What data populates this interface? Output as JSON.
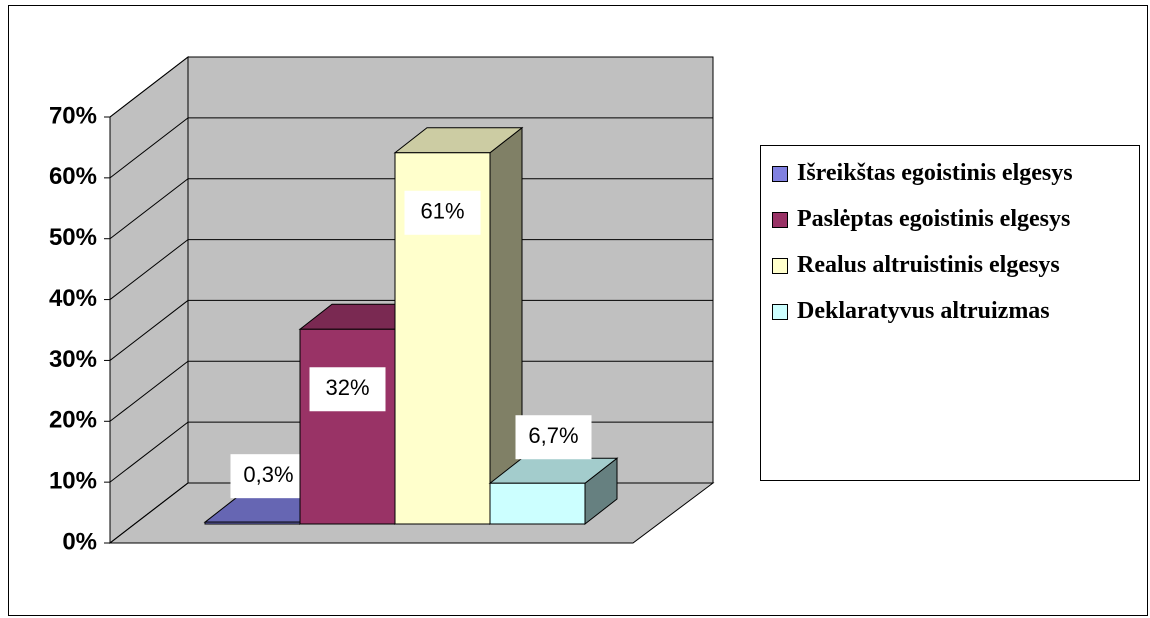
{
  "chart_data": {
    "type": "bar",
    "series": [
      {
        "name": "Išreikštas egoistinis elgesys",
        "color": "#8080e0",
        "values": [
          0.3
        ],
        "value_labels": [
          "0,3%"
        ]
      },
      {
        "name": "Paslėptas egoistinis elgesys",
        "color": "#993366",
        "values": [
          32
        ],
        "value_labels": [
          "32%"
        ]
      },
      {
        "name": "Realus altruistinis elgesys",
        "color": "#ffffcc",
        "values": [
          61
        ],
        "value_labels": [
          "61%"
        ]
      },
      {
        "name": "Deklaratyvus altruizmas",
        "color": "#ccffff",
        "values": [
          6.7
        ],
        "value_labels": [
          "6,7%"
        ]
      }
    ],
    "ylim": [
      0,
      70
    ],
    "yticks": [
      {
        "value": 0,
        "label": "0%"
      },
      {
        "value": 10,
        "label": "10%"
      },
      {
        "value": 20,
        "label": "20%"
      },
      {
        "value": 30,
        "label": "30%"
      },
      {
        "value": 40,
        "label": "40%"
      },
      {
        "value": 50,
        "label": "50%"
      },
      {
        "value": 60,
        "label": "60%"
      },
      {
        "value": 70,
        "label": "70%"
      }
    ],
    "grid": true
  }
}
